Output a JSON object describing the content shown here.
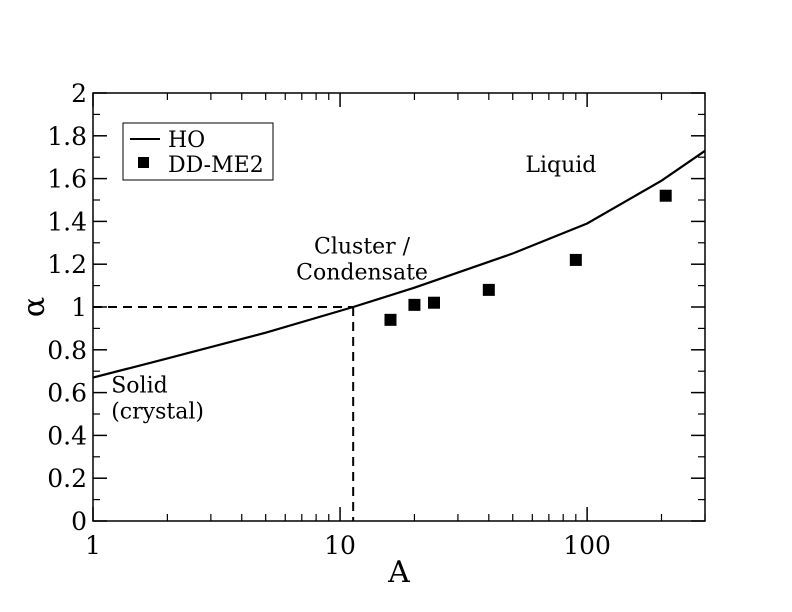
{
  "chart_data": {
    "type": "scatter",
    "title": "",
    "xlabel": "A",
    "ylabel": "α",
    "xscale": "log",
    "xlim": [
      1,
      300
    ],
    "ylim": [
      0,
      2
    ],
    "grid": false,
    "legend_position": "top-left",
    "x_ticks": [
      {
        "value": 1,
        "label": "1"
      },
      {
        "value": 10,
        "label": "10"
      },
      {
        "value": 100,
        "label": "100"
      }
    ],
    "y_ticks": [
      {
        "value": 0,
        "label": "0"
      },
      {
        "value": 0.2,
        "label": "0.2"
      },
      {
        "value": 0.4,
        "label": "0.4"
      },
      {
        "value": 0.6,
        "label": "0.6"
      },
      {
        "value": 0.8,
        "label": "0.8"
      },
      {
        "value": 1,
        "label": "1"
      },
      {
        "value": 1.2,
        "label": "1.2"
      },
      {
        "value": 1.4,
        "label": "1.4"
      },
      {
        "value": 1.6,
        "label": "1.6"
      },
      {
        "value": 1.8,
        "label": "1.8"
      },
      {
        "value": 2,
        "label": "2"
      }
    ],
    "series": [
      {
        "name": "HO",
        "style": "line",
        "color": "#000000",
        "x": [
          1,
          2,
          5,
          11.3,
          20,
          50,
          100,
          200,
          300
        ],
        "y": [
          0.67,
          0.76,
          0.88,
          1.0,
          1.09,
          1.25,
          1.39,
          1.59,
          1.73
        ]
      },
      {
        "name": "DD-ME2",
        "style": "marker-square",
        "color": "#000000",
        "x": [
          16,
          20,
          24,
          40,
          90,
          208
        ],
        "y": [
          0.94,
          1.01,
          1.02,
          1.08,
          1.22,
          1.52
        ]
      }
    ],
    "reference_lines": {
      "critical_point": {
        "x": 11.3,
        "y": 1.0
      },
      "style": "dashed"
    },
    "annotations": [
      {
        "id": "solid",
        "lines": [
          "Solid",
          "(crystal)"
        ],
        "x": 1.1,
        "y": 0.6
      },
      {
        "id": "cluster",
        "lines": [
          "Cluster /",
          "Condensate"
        ],
        "x": 10,
        "y": 1.25
      },
      {
        "id": "liquid",
        "lines": [
          "Liquid"
        ],
        "x": 65,
        "y": 1.63
      }
    ]
  }
}
